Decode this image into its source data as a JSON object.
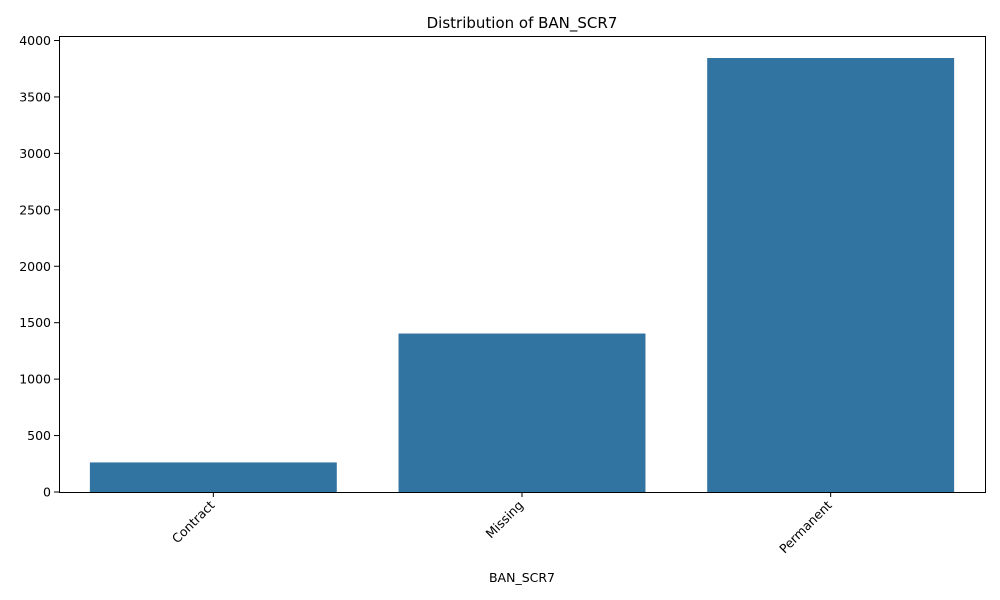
{
  "chart_data": {
    "type": "bar",
    "title": "Distribution of BAN_SCR7",
    "xlabel": "BAN_SCR7",
    "ylabel": "",
    "categories": [
      "Contract",
      "Missing",
      "Permanent"
    ],
    "values": [
      262,
      1404,
      3845
    ],
    "ylim": [
      0,
      4040
    ],
    "yticks": [
      0,
      500,
      1000,
      1500,
      2000,
      2500,
      3000,
      3500,
      4000
    ],
    "bar_color": "#3274a1",
    "grid": false,
    "legend": "none"
  }
}
